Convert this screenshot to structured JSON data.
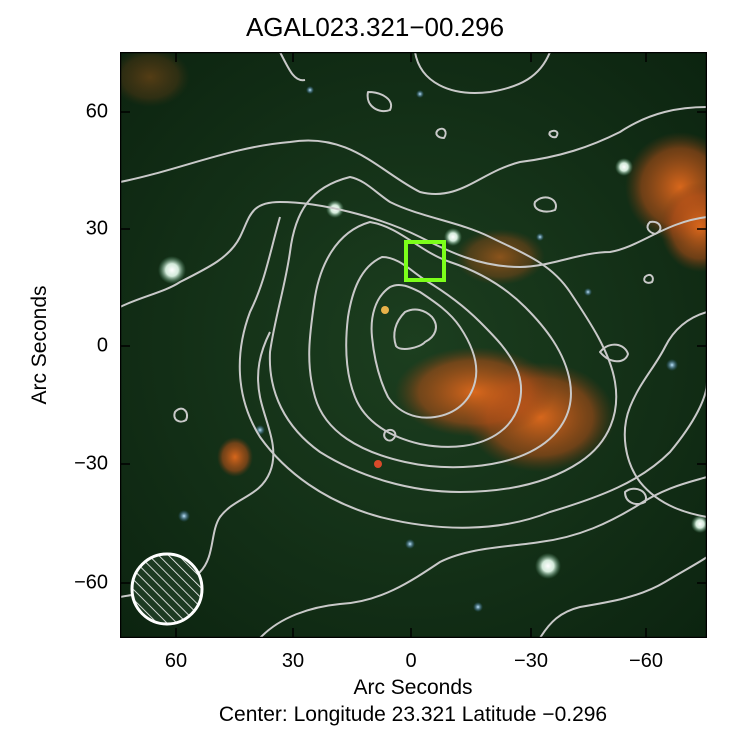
{
  "title": "AGAL023.321−00.296",
  "x_axis_label": "Arc Seconds",
  "y_axis_label": "Arc Seconds",
  "center_text": "Center:  Longitude 23.321 Latitude −0.296",
  "x_ticks": [
    "60",
    "30",
    "0",
    "−30",
    "−60"
  ],
  "y_ticks": [
    "60",
    "30",
    "0",
    "−30",
    "−60"
  ],
  "colors": {
    "background": "#0f2a14",
    "contour": "#c8c8c8",
    "marker": "#7cff1a",
    "emission": "#d9601a",
    "beam": "#ffffff"
  },
  "marker_box": {
    "x_offset_arcsec": -4,
    "y_offset_arcsec": 22,
    "size_arcsec": 10
  }
}
